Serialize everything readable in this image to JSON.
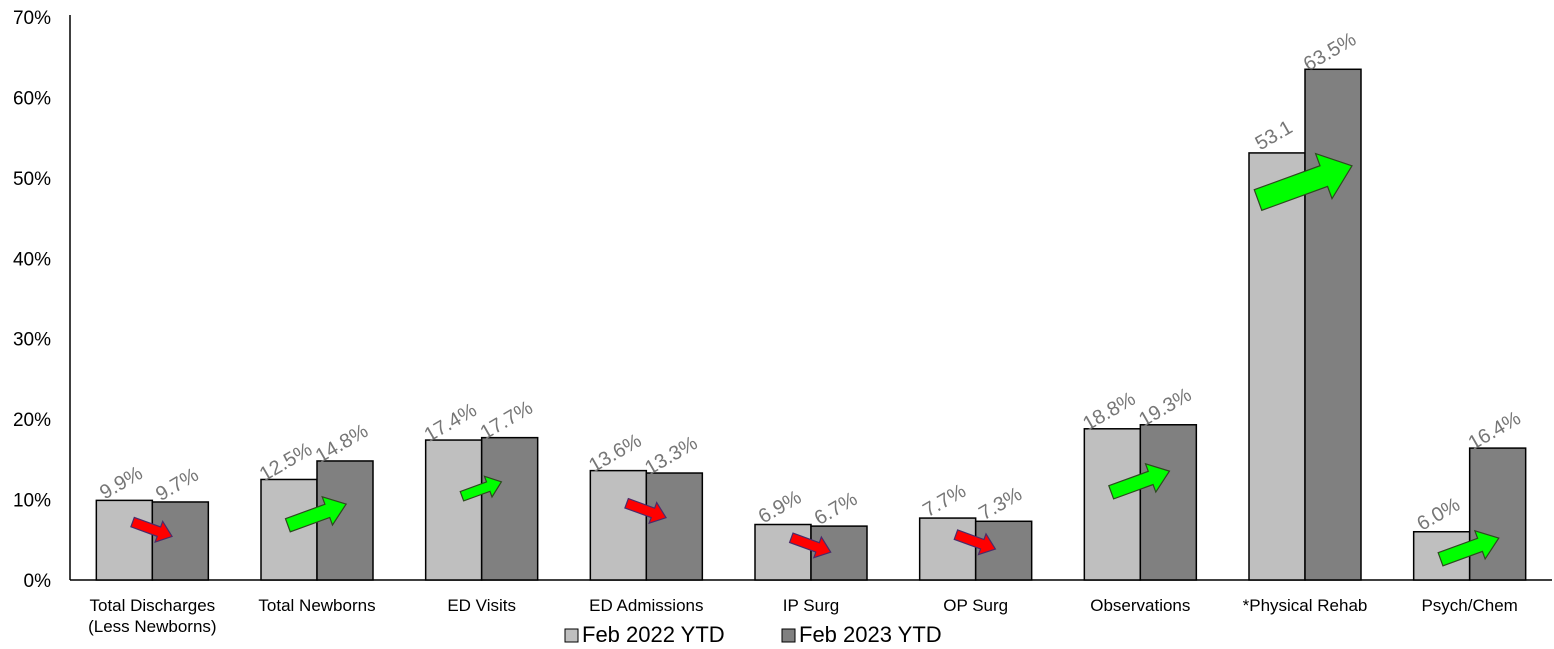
{
  "chart_data": {
    "type": "bar",
    "categories": [
      [
        "Total Discharges",
        "(Less Newborns)"
      ],
      [
        "Total Newborns"
      ],
      [
        "ED Visits"
      ],
      [
        "ED Admissions"
      ],
      [
        "IP Surg"
      ],
      [
        "OP Surg"
      ],
      [
        "Observations"
      ],
      [
        "*Physical Rehab"
      ],
      [
        "Psych/Chem"
      ]
    ],
    "series": [
      {
        "name": "Feb 2022 YTD",
        "color": "#bfbfbf",
        "values": [
          9.9,
          12.5,
          17.4,
          13.6,
          6.9,
          7.7,
          18.8,
          53.1,
          6.0
        ],
        "labels": [
          "9.9%",
          "12.5%",
          "17.4%",
          "13.6%",
          "6.9%",
          "7.7%",
          "18.8%",
          "53.1",
          "6.0%"
        ]
      },
      {
        "name": "Feb 2023 YTD",
        "color": "#808080",
        "values": [
          9.7,
          14.8,
          17.7,
          13.3,
          6.7,
          7.3,
          19.3,
          63.5,
          16.4
        ],
        "labels": [
          "9.7%",
          "14.8%",
          "17.7%",
          "13.3%",
          "6.7%",
          "7.3%",
          "19.3%",
          "63.5%",
          "16.4%"
        ]
      }
    ],
    "trend_arrows": [
      "down",
      "up",
      "up",
      "down",
      "down",
      "down",
      "up",
      "up",
      "up"
    ],
    "arrow_colors": {
      "up": "#00ff00",
      "down": "#ff0000"
    },
    "ylim": [
      0,
      70
    ],
    "yticks": [
      "0%",
      "10%",
      "20%",
      "30%",
      "40%",
      "50%",
      "60%",
      "70%"
    ],
    "grid": false,
    "legend_position": "bottom"
  }
}
